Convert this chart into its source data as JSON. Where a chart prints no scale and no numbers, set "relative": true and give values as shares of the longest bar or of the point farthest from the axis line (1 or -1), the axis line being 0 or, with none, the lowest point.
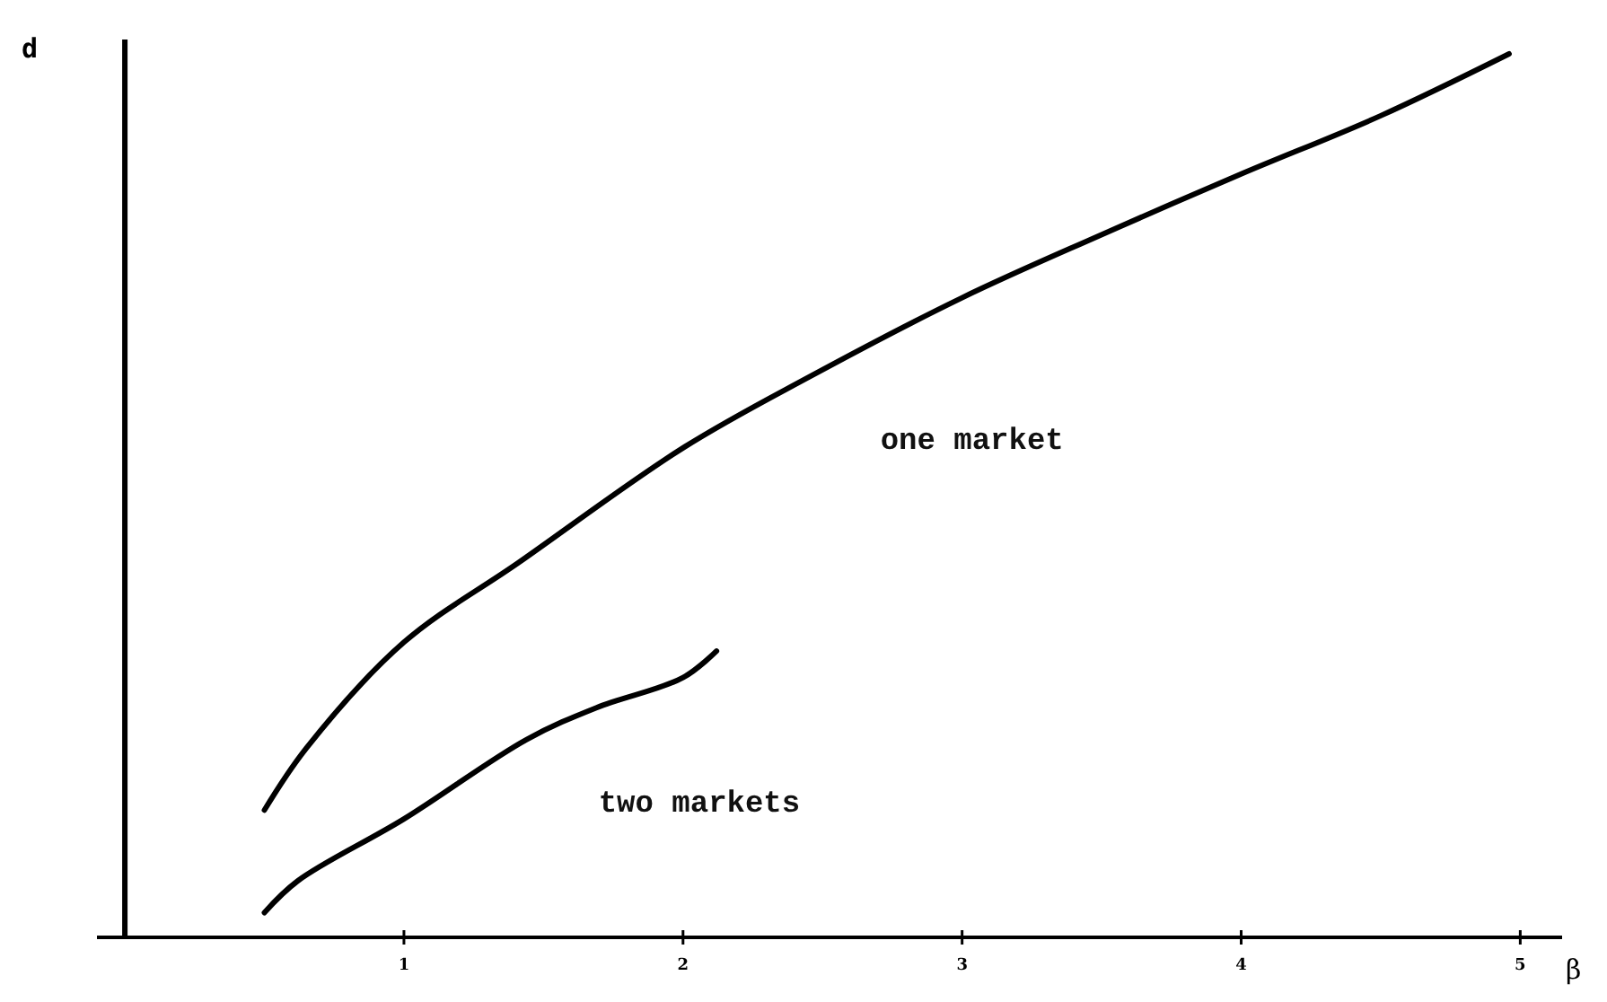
{
  "chart_data": {
    "type": "line",
    "xlabel": "β",
    "ylabel": "d",
    "relative": true,
    "xlim": [
      -0.1,
      5.15
    ],
    "xticks": [
      1,
      2,
      3,
      4,
      5
    ],
    "marker": "none",
    "line_style": "solid",
    "grid": false,
    "series": [
      {
        "name": "one market",
        "color": "#000000",
        "x": [
          0.5,
          0.65,
          1.0,
          1.41,
          2.0,
          2.45,
          3.0,
          3.49,
          4.0,
          4.5,
          4.96
        ],
        "values": [
          0.144,
          0.214,
          0.334,
          0.424,
          0.554,
          0.634,
          0.724,
          0.794,
          0.864,
          0.93,
          1.0
        ]
      },
      {
        "name": "two markets",
        "color": "#000000",
        "x": [
          0.5,
          0.62,
          1.0,
          1.44,
          1.69,
          2.0,
          2.12
        ],
        "values": [
          0.028,
          0.064,
          0.134,
          0.224,
          0.26,
          0.294,
          0.324
        ]
      }
    ]
  }
}
